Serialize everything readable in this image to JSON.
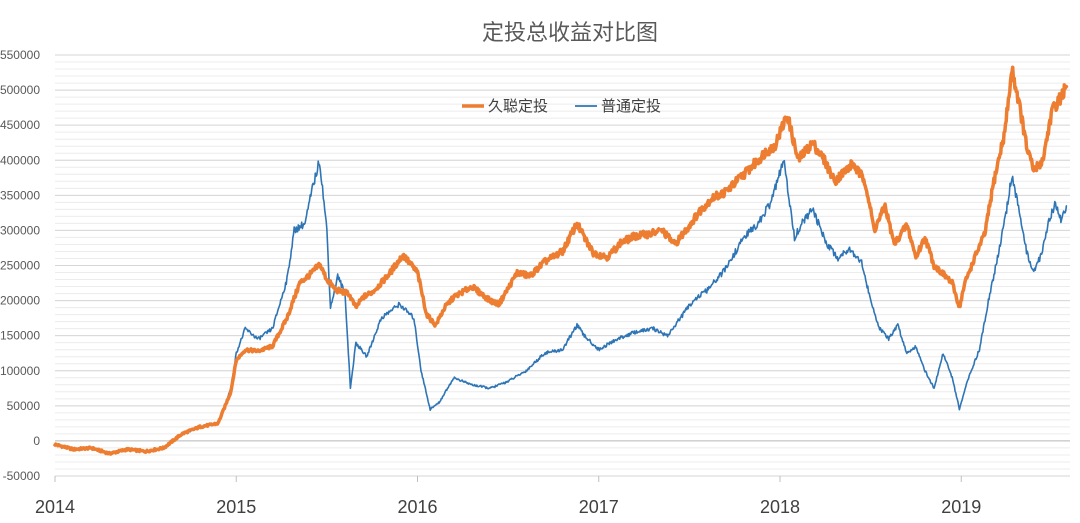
{
  "chart_data": {
    "type": "line",
    "title": "定投总收益对比图",
    "xlabel": "",
    "ylabel": "",
    "x_range": [
      2014.0,
      2019.6
    ],
    "x_ticks": [
      2014,
      2015,
      2016,
      2017,
      2018,
      2019
    ],
    "x_tick_labels": [
      "2014",
      "2015",
      "2016",
      "2017",
      "2018",
      "2019"
    ],
    "ylim": [
      -50000,
      550000
    ],
    "y_ticks": [
      -50000,
      0,
      50000,
      100000,
      150000,
      200000,
      250000,
      300000,
      350000,
      400000,
      450000,
      500000,
      550000
    ],
    "y_tick_labels": [
      "-50000",
      "0",
      "50000",
      "100000",
      "150000",
      "200000",
      "250000",
      "300000",
      "350000",
      "400000",
      "450000",
      "500000",
      "550000"
    ],
    "grid": true,
    "legend_position": "top-center",
    "series": [
      {
        "name": "久聪定投",
        "color": "#ED7D31",
        "points": [
          [
            2014.0,
            -5000
          ],
          [
            2014.1,
            -12000
          ],
          [
            2014.2,
            -10000
          ],
          [
            2014.3,
            -18000
          ],
          [
            2014.4,
            -12000
          ],
          [
            2014.5,
            -15000
          ],
          [
            2014.6,
            -10000
          ],
          [
            2014.7,
            10000
          ],
          [
            2014.8,
            20000
          ],
          [
            2014.9,
            25000
          ],
          [
            2014.97,
            70000
          ],
          [
            2015.0,
            115000
          ],
          [
            2015.05,
            130000
          ],
          [
            2015.12,
            128000
          ],
          [
            2015.2,
            135000
          ],
          [
            2015.28,
            175000
          ],
          [
            2015.35,
            225000
          ],
          [
            2015.42,
            240000
          ],
          [
            2015.46,
            252000
          ],
          [
            2015.5,
            230000
          ],
          [
            2015.55,
            215000
          ],
          [
            2015.62,
            210000
          ],
          [
            2015.66,
            190000
          ],
          [
            2015.7,
            205000
          ],
          [
            2015.75,
            212000
          ],
          [
            2015.8,
            225000
          ],
          [
            2015.85,
            240000
          ],
          [
            2015.92,
            265000
          ],
          [
            2016.0,
            240000
          ],
          [
            2016.05,
            180000
          ],
          [
            2016.1,
            165000
          ],
          [
            2016.15,
            190000
          ],
          [
            2016.2,
            205000
          ],
          [
            2016.3,
            220000
          ],
          [
            2016.4,
            200000
          ],
          [
            2016.45,
            195000
          ],
          [
            2016.55,
            240000
          ],
          [
            2016.62,
            235000
          ],
          [
            2016.7,
            255000
          ],
          [
            2016.8,
            270000
          ],
          [
            2016.88,
            310000
          ],
          [
            2016.92,
            290000
          ],
          [
            2016.97,
            268000
          ],
          [
            2017.05,
            262000
          ],
          [
            2017.12,
            282000
          ],
          [
            2017.2,
            292000
          ],
          [
            2017.28,
            295000
          ],
          [
            2017.35,
            300000
          ],
          [
            2017.42,
            280000
          ],
          [
            2017.48,
            300000
          ],
          [
            2017.55,
            325000
          ],
          [
            2017.62,
            345000
          ],
          [
            2017.7,
            355000
          ],
          [
            2017.8,
            380000
          ],
          [
            2017.88,
            400000
          ],
          [
            2017.92,
            412000
          ],
          [
            2017.97,
            420000
          ],
          [
            2018.04,
            465000
          ],
          [
            2018.1,
            400000
          ],
          [
            2018.18,
            425000
          ],
          [
            2018.25,
            398000
          ],
          [
            2018.3,
            370000
          ],
          [
            2018.4,
            395000
          ],
          [
            2018.47,
            370000
          ],
          [
            2018.52,
            300000
          ],
          [
            2018.58,
            335000
          ],
          [
            2018.63,
            280000
          ],
          [
            2018.7,
            308000
          ],
          [
            2018.75,
            262000
          ],
          [
            2018.8,
            290000
          ],
          [
            2018.85,
            250000
          ],
          [
            2018.9,
            238000
          ],
          [
            2018.95,
            225000
          ],
          [
            2018.99,
            190000
          ],
          [
            2019.02,
            225000
          ],
          [
            2019.08,
            265000
          ],
          [
            2019.13,
            295000
          ],
          [
            2019.18,
            370000
          ],
          [
            2019.24,
            440000
          ],
          [
            2019.28,
            530000
          ],
          [
            2019.32,
            480000
          ],
          [
            2019.36,
            420000
          ],
          [
            2019.4,
            385000
          ],
          [
            2019.45,
            400000
          ],
          [
            2019.5,
            470000
          ],
          [
            2019.55,
            490000
          ],
          [
            2019.58,
            505000
          ]
        ]
      },
      {
        "name": "普通定投",
        "color": "#2E75B6",
        "points": [
          [
            2014.0,
            -5000
          ],
          [
            2014.1,
            -12000
          ],
          [
            2014.2,
            -10000
          ],
          [
            2014.3,
            -18000
          ],
          [
            2014.4,
            -12000
          ],
          [
            2014.5,
            -15000
          ],
          [
            2014.6,
            -10000
          ],
          [
            2014.7,
            10000
          ],
          [
            2014.8,
            20000
          ],
          [
            2014.9,
            25000
          ],
          [
            2014.97,
            75000
          ],
          [
            2015.0,
            125000
          ],
          [
            2015.05,
            160000
          ],
          [
            2015.12,
            145000
          ],
          [
            2015.2,
            160000
          ],
          [
            2015.28,
            230000
          ],
          [
            2015.32,
            300000
          ],
          [
            2015.38,
            310000
          ],
          [
            2015.42,
            360000
          ],
          [
            2015.46,
            400000
          ],
          [
            2015.5,
            300000
          ],
          [
            2015.52,
            190000
          ],
          [
            2015.56,
            235000
          ],
          [
            2015.6,
            210000
          ],
          [
            2015.63,
            75000
          ],
          [
            2015.66,
            140000
          ],
          [
            2015.72,
            120000
          ],
          [
            2015.8,
            175000
          ],
          [
            2015.9,
            195000
          ],
          [
            2015.98,
            175000
          ],
          [
            2016.02,
            100000
          ],
          [
            2016.07,
            45000
          ],
          [
            2016.12,
            55000
          ],
          [
            2016.2,
            90000
          ],
          [
            2016.3,
            80000
          ],
          [
            2016.4,
            75000
          ],
          [
            2016.5,
            85000
          ],
          [
            2016.6,
            100000
          ],
          [
            2016.7,
            125000
          ],
          [
            2016.8,
            130000
          ],
          [
            2016.88,
            165000
          ],
          [
            2016.92,
            150000
          ],
          [
            2017.0,
            130000
          ],
          [
            2017.1,
            145000
          ],
          [
            2017.2,
            155000
          ],
          [
            2017.3,
            160000
          ],
          [
            2017.38,
            150000
          ],
          [
            2017.45,
            175000
          ],
          [
            2017.52,
            200000
          ],
          [
            2017.6,
            215000
          ],
          [
            2017.7,
            245000
          ],
          [
            2017.8,
            290000
          ],
          [
            2017.88,
            310000
          ],
          [
            2017.95,
            340000
          ],
          [
            2018.02,
            400000
          ],
          [
            2018.08,
            290000
          ],
          [
            2018.12,
            310000
          ],
          [
            2018.18,
            330000
          ],
          [
            2018.25,
            285000
          ],
          [
            2018.32,
            260000
          ],
          [
            2018.38,
            275000
          ],
          [
            2018.45,
            255000
          ],
          [
            2018.5,
            200000
          ],
          [
            2018.55,
            160000
          ],
          [
            2018.6,
            145000
          ],
          [
            2018.65,
            165000
          ],
          [
            2018.7,
            125000
          ],
          [
            2018.75,
            135000
          ],
          [
            2018.8,
            100000
          ],
          [
            2018.85,
            75000
          ],
          [
            2018.9,
            125000
          ],
          [
            2018.95,
            90000
          ],
          [
            2018.99,
            45000
          ],
          [
            2019.04,
            90000
          ],
          [
            2019.1,
            130000
          ],
          [
            2019.15,
            200000
          ],
          [
            2019.2,
            260000
          ],
          [
            2019.25,
            330000
          ],
          [
            2019.28,
            380000
          ],
          [
            2019.32,
            325000
          ],
          [
            2019.36,
            270000
          ],
          [
            2019.4,
            240000
          ],
          [
            2019.44,
            265000
          ],
          [
            2019.48,
            310000
          ],
          [
            2019.52,
            340000
          ],
          [
            2019.55,
            315000
          ],
          [
            2019.58,
            335000
          ]
        ]
      }
    ]
  }
}
